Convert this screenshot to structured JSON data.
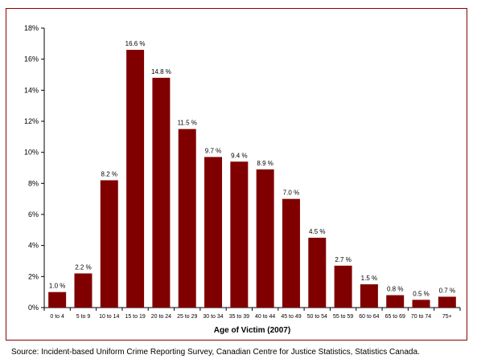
{
  "chart_data": {
    "type": "bar",
    "xlabel": "Age of Victim (2007)",
    "ylabel": "",
    "ylim": [
      0,
      18
    ],
    "y_ticks": [
      "0%",
      "2%",
      "4%",
      "6%",
      "8%",
      "10%",
      "12%",
      "14%",
      "16%",
      "18%"
    ],
    "categories": [
      "0 to 4",
      "5 to 9",
      "10 to 14",
      "15 to 19",
      "20 to 24",
      "25 to 29",
      "30 to 34",
      "35 to 39",
      "40 to 44",
      "45 to 49",
      "50 to 54",
      "55 to 59",
      "60 to 64",
      "65 to 69",
      "70 to 74",
      "75+"
    ],
    "values": [
      1.0,
      2.2,
      8.2,
      16.6,
      14.8,
      11.5,
      9.7,
      9.4,
      8.9,
      7.0,
      4.5,
      2.7,
      1.5,
      0.8,
      0.5,
      0.7
    ],
    "data_labels": [
      "1.0 %",
      "2.2 %",
      "8.2 %",
      "16.6 %",
      "14.8 %",
      "11.5 %",
      "9.7 %",
      "9.4 %",
      "8.9 %",
      "7.0 %",
      "4.5 %",
      "2.7 %",
      "1.5 %",
      "0.8 %",
      "0.5 %",
      "0.7 %"
    ],
    "bar_color": "#800000",
    "grid": false,
    "legend": false
  },
  "source": "Source:  Incident-based Uniform Crime Reporting Survey, Canadian Centre for Justice Statistics, Statistics Canada."
}
